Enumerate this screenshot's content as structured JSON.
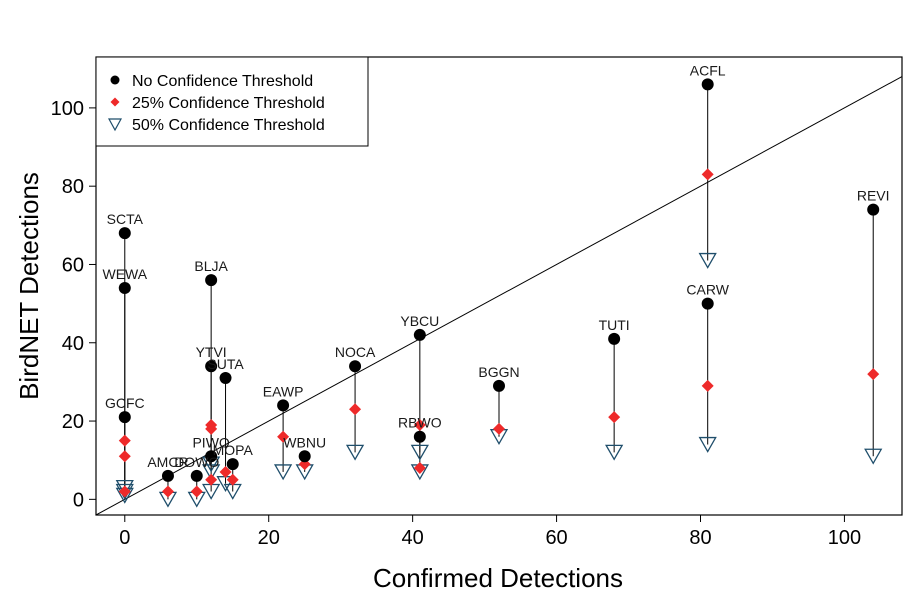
{
  "chart_data": {
    "type": "scatter",
    "xlabel": "Confirmed Detections",
    "ylabel": "BirdNET Detections",
    "xlim": [
      -4,
      108
    ],
    "ylim": [
      -4,
      113
    ],
    "xticks": [
      0,
      20,
      40,
      60,
      80,
      100
    ],
    "yticks": [
      0,
      20,
      40,
      60,
      80,
      100
    ],
    "grid": false,
    "legend_position": "top-left",
    "reference_line": {
      "intercept": 0,
      "slope": 1
    },
    "series": [
      {
        "key": "none",
        "name": "No Confidence Threshold",
        "marker": "circle",
        "color": "#000000"
      },
      {
        "key": "c25",
        "name": "25% Confidence Threshold",
        "marker": "diamond",
        "color": "#ee2a2a"
      },
      {
        "key": "c50",
        "name": "50% Confidence Threshold",
        "marker": "triangle-down-open",
        "color": "#1f4e6b"
      }
    ],
    "points": [
      {
        "label": "SCTA",
        "x": 0,
        "none": 68,
        "c25": 2,
        "c50": 2
      },
      {
        "label": "WEWA",
        "x": 0,
        "none": 54,
        "c25": 11,
        "c50": 1
      },
      {
        "label": "GCFC",
        "x": 0,
        "none": 21,
        "c25": 15,
        "c50": 3
      },
      {
        "label": "AMCR",
        "x": 6,
        "none": 6,
        "c25": 2,
        "c50": 0
      },
      {
        "label": "DOWO",
        "x": 10,
        "none": 6,
        "c25": 2,
        "c50": 0
      },
      {
        "label": "BLJA",
        "x": 12,
        "none": 56,
        "c25": 19,
        "c50": 9
      },
      {
        "label": "YTVI",
        "x": 12,
        "none": 34,
        "c25": 18,
        "c50": 7
      },
      {
        "label": "PIWO",
        "x": 12,
        "none": 11,
        "c25": 5,
        "c50": 2
      },
      {
        "label": "SUTA",
        "x": 14,
        "none": 31,
        "c25": 7,
        "c50": 4
      },
      {
        "label": "MOPA",
        "x": 15,
        "none": 9,
        "c25": 5,
        "c50": 2
      },
      {
        "label": "EAWP",
        "x": 22,
        "none": 24,
        "c25": 16,
        "c50": 7
      },
      {
        "label": "WBNU",
        "x": 25,
        "none": 11,
        "c25": 9,
        "c50": 7
      },
      {
        "label": "NOCA",
        "x": 32,
        "none": 34,
        "c25": 23,
        "c50": 12
      },
      {
        "label": "YBCU",
        "x": 41,
        "none": 42,
        "c25": 19,
        "c50": 12
      },
      {
        "label": "RBWO",
        "x": 41,
        "none": 16,
        "c25": 8,
        "c50": 7
      },
      {
        "label": "BGGN",
        "x": 52,
        "none": 29,
        "c25": 18,
        "c50": 16
      },
      {
        "label": "TUTI",
        "x": 68,
        "none": 41,
        "c25": 21,
        "c50": 12
      },
      {
        "label": "ACFL",
        "x": 81,
        "none": 106,
        "c25": 83,
        "c50": 61
      },
      {
        "label": "CARW",
        "x": 81,
        "none": 50,
        "c25": 29,
        "c50": 14
      },
      {
        "label": "REVI",
        "x": 104,
        "none": 74,
        "c25": 32,
        "c50": 11
      }
    ]
  }
}
